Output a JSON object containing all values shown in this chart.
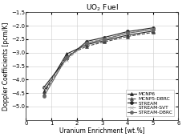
{
  "title": "UO$_2$ Fuel",
  "xlabel": "Uranium Enrichment [wt.%]",
  "ylabel": "Doppler Coefficients [pcm/K]",
  "xlim": [
    0,
    6
  ],
  "ylim": [
    -5.5,
    -1.5
  ],
  "yticks": [
    -5.0,
    -4.5,
    -4.0,
    -3.5,
    -3.0,
    -2.5,
    -2.0,
    -1.5
  ],
  "xticks": [
    0,
    1,
    2,
    3,
    4,
    5,
    6
  ],
  "series": [
    {
      "name": "MCNP6",
      "x": [
        0.711,
        1.6,
        2.4,
        3.1,
        4.0,
        5.0
      ],
      "y": [
        -4.45,
        -3.05,
        -2.7,
        -2.55,
        -2.35,
        -2.2
      ],
      "color": "#222222",
      "linestyle": "-",
      "marker": "^",
      "markersize": 2.8,
      "linewidth": 0.8
    },
    {
      "name": "MCNP5-DBRC",
      "x": [
        0.711,
        1.6,
        2.4,
        3.1,
        4.0,
        5.0
      ],
      "y": [
        -4.52,
        -3.12,
        -2.76,
        -2.6,
        -2.4,
        -2.25
      ],
      "color": "#444444",
      "linestyle": "--",
      "marker": "^",
      "markersize": 2.8,
      "linewidth": 0.8
    },
    {
      "name": "STREAM",
      "x": [
        0.711,
        1.6,
        2.4,
        3.1,
        4.0,
        5.0
      ],
      "y": [
        -4.28,
        -3.22,
        -2.58,
        -2.43,
        -2.22,
        -2.08
      ],
      "color": "#222222",
      "linestyle": "-",
      "marker": "o",
      "markersize": 2.8,
      "linewidth": 0.8
    },
    {
      "name": "STREAM-SVT",
      "x": [
        0.711,
        1.6,
        2.4,
        3.1,
        4.0,
        5.0
      ],
      "y": [
        -4.33,
        -3.28,
        -2.63,
        -2.48,
        -2.27,
        -2.12
      ],
      "color": "#aaaaaa",
      "linestyle": "--",
      "marker": "x",
      "markersize": 2.8,
      "linewidth": 0.8
    },
    {
      "name": "STREAM-DBRC",
      "x": [
        0.711,
        1.6,
        2.4,
        3.1,
        4.0,
        5.0
      ],
      "y": [
        -4.62,
        -3.18,
        -2.66,
        -2.5,
        -2.28,
        -2.14
      ],
      "color": "#666666",
      "linestyle": "-",
      "marker": "o",
      "markersize": 2.8,
      "linewidth": 0.8
    }
  ],
  "legend_loc": "lower right",
  "grid_color": "#cccccc",
  "background_color": "#ffffff",
  "title_fontsize": 6.5,
  "axis_fontsize": 5.5,
  "tick_fontsize": 5.0,
  "legend_fontsize": 4.2
}
